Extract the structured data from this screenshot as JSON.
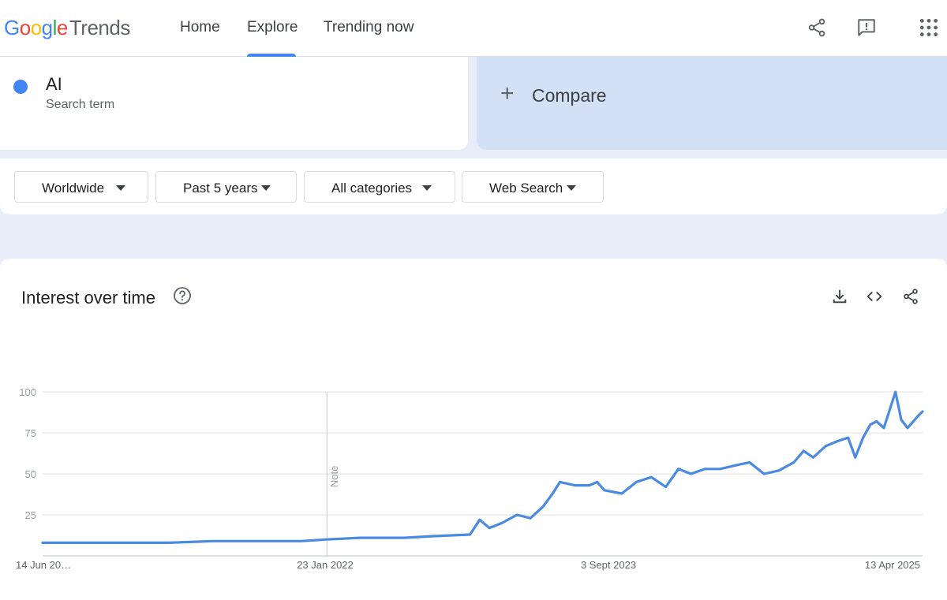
{
  "header": {
    "logo": {
      "g1": "G",
      "o1": "o",
      "o2": "o",
      "g2": "g",
      "l": "l",
      "e": "e",
      "product": "Trends"
    },
    "nav": [
      {
        "label": "Home",
        "active": false
      },
      {
        "label": "Explore",
        "active": true
      },
      {
        "label": "Trending now",
        "active": false
      }
    ],
    "icons": [
      "share-icon",
      "feedback-icon",
      "apps-grid-icon"
    ]
  },
  "search_term": {
    "name": "AI",
    "subtitle": "Search term",
    "color": "#4285f4"
  },
  "compare": {
    "label": "Compare",
    "icon": "plus-icon"
  },
  "filters": [
    {
      "label": "Worldwide"
    },
    {
      "label": "Past 5 years"
    },
    {
      "label": "All categories"
    },
    {
      "label": "Web Search"
    }
  ],
  "card": {
    "title": "Interest over time",
    "icons": [
      "help-icon",
      "download-icon",
      "embed-code-icon",
      "share-icon"
    ]
  },
  "chart_data": {
    "type": "line",
    "title": "",
    "xlabel": "",
    "ylabel": "",
    "ylim": [
      0,
      100
    ],
    "yticks": [
      25,
      50,
      75,
      100
    ],
    "x_tick_labels": [
      "14 Jun 20…",
      "23 Jan 2022",
      "3 Sept 2023",
      "13 Apr 2025"
    ],
    "x_start": "2020-06-14",
    "x_end": "2025-06-08",
    "note": {
      "label": "Note",
      "x": "2022-01-23"
    },
    "grid": true,
    "legend": "none",
    "series": [
      {
        "color": "#4a8ae0",
        "points": [
          [
            "2020-06-14",
            8
          ],
          [
            "2020-09-01",
            8
          ],
          [
            "2020-12-01",
            8
          ],
          [
            "2021-03-01",
            8
          ],
          [
            "2021-06-01",
            9
          ],
          [
            "2021-09-01",
            9
          ],
          [
            "2021-12-01",
            9
          ],
          [
            "2022-01-23",
            10
          ],
          [
            "2022-04-01",
            11
          ],
          [
            "2022-07-01",
            11
          ],
          [
            "2022-09-01",
            12
          ],
          [
            "2022-11-15",
            13
          ],
          [
            "2022-12-05",
            22
          ],
          [
            "2022-12-25",
            17
          ],
          [
            "2023-01-20",
            20
          ],
          [
            "2023-02-20",
            25
          ],
          [
            "2023-03-20",
            23
          ],
          [
            "2023-04-15",
            30
          ],
          [
            "2023-05-05",
            38
          ],
          [
            "2023-05-20",
            45
          ],
          [
            "2023-06-20",
            43
          ],
          [
            "2023-07-20",
            43
          ],
          [
            "2023-08-05",
            45
          ],
          [
            "2023-08-20",
            40
          ],
          [
            "2023-09-25",
            38
          ],
          [
            "2023-10-25",
            45
          ],
          [
            "2023-11-25",
            48
          ],
          [
            "2023-12-25",
            42
          ],
          [
            "2024-01-20",
            53
          ],
          [
            "2024-02-15",
            50
          ],
          [
            "2024-03-15",
            53
          ],
          [
            "2024-04-15",
            53
          ],
          [
            "2024-05-15",
            55
          ],
          [
            "2024-06-15",
            57
          ],
          [
            "2024-07-15",
            50
          ],
          [
            "2024-08-15",
            52
          ],
          [
            "2024-09-15",
            57
          ],
          [
            "2024-10-05",
            64
          ],
          [
            "2024-10-25",
            60
          ],
          [
            "2024-11-20",
            67
          ],
          [
            "2024-12-15",
            70
          ],
          [
            "2025-01-05",
            72
          ],
          [
            "2025-01-20",
            60
          ],
          [
            "2025-02-05",
            72
          ],
          [
            "2025-02-20",
            80
          ],
          [
            "2025-03-05",
            82
          ],
          [
            "2025-03-20",
            78
          ],
          [
            "2025-04-13",
            100
          ],
          [
            "2025-04-25",
            83
          ],
          [
            "2025-05-08",
            78
          ],
          [
            "2025-05-20",
            82
          ],
          [
            "2025-06-01",
            86
          ],
          [
            "2025-06-08",
            88
          ]
        ]
      }
    ]
  }
}
